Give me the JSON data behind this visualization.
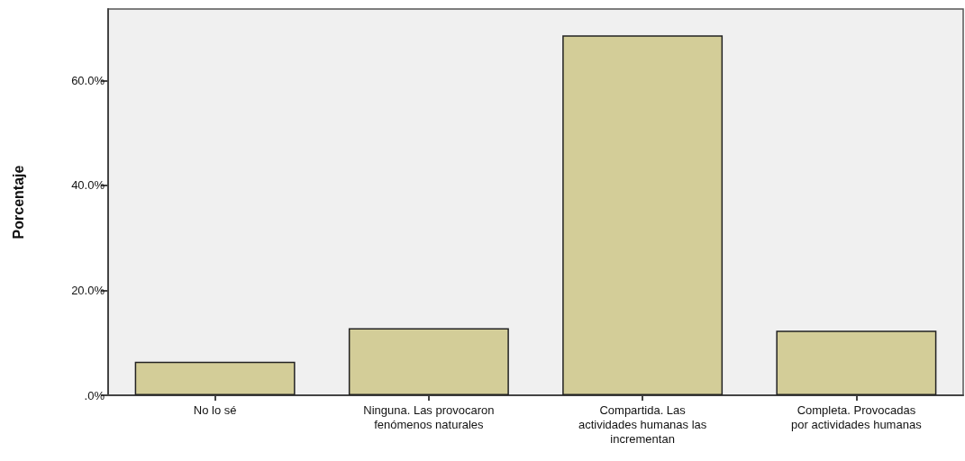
{
  "chart_data": {
    "type": "bar",
    "ylabel": "Porcentaje",
    "categories": [
      "No lo sé",
      "Ninguna. Las provocaron\nfenómenos naturales",
      "Compartida. Las\nactividades humanas las\nincrementan",
      "Completa. Provocadas\npor actividades humanas"
    ],
    "values": [
      6.4,
      12.8,
      68.6,
      12.3
    ],
    "color": "#d3cd98",
    "ylim": [
      0,
      73.6
    ],
    "yticks": [
      {
        "value": 0,
        "label": ".0%"
      },
      {
        "value": 20,
        "label": "20.0%"
      },
      {
        "value": 40,
        "label": "40.0%"
      },
      {
        "value": 60,
        "label": "60.0%"
      }
    ],
    "grid": false
  }
}
